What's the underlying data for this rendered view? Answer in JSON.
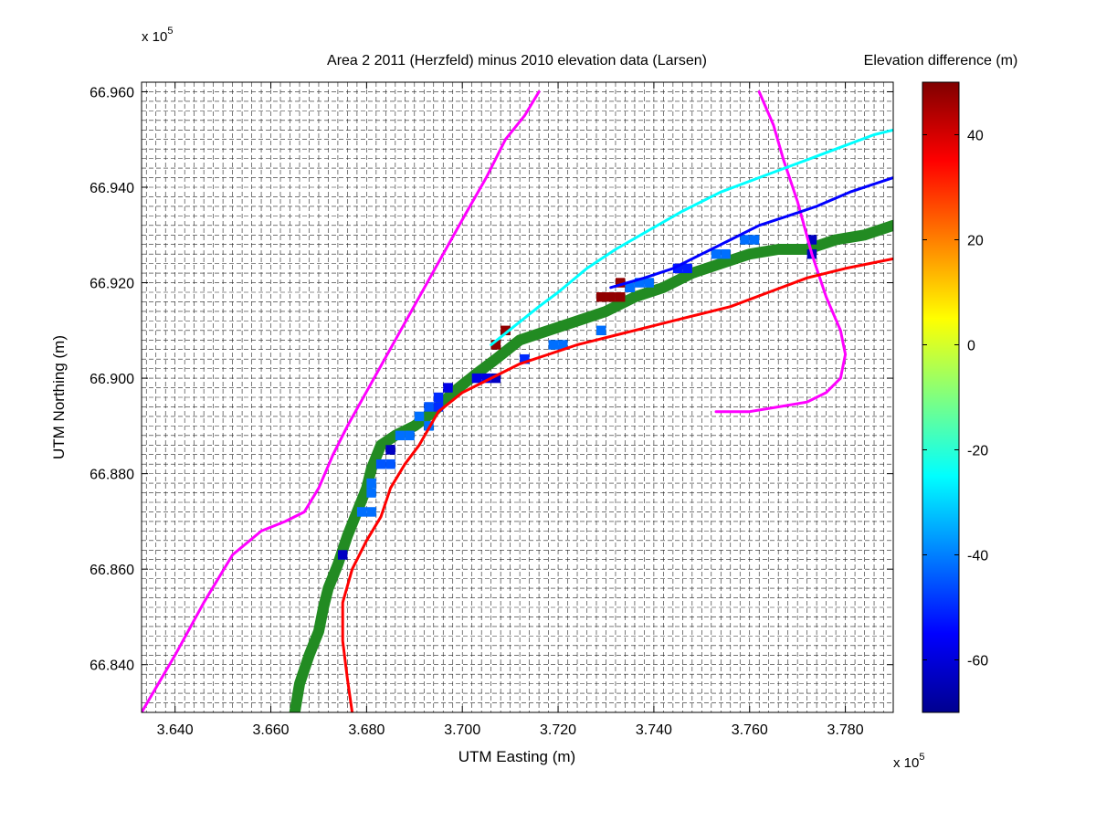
{
  "chart_data": {
    "type": "heatmap",
    "title": "Area 2 2011 (Herzfeld) minus 2010 elevation data (Larsen)",
    "xlabel": "UTM Easting (m)",
    "ylabel": "UTM Northing (m)",
    "x_multiplier_label": "x 10",
    "x_multiplier_exp": "5",
    "y_multiplier_label": "x 10",
    "y_multiplier_exp": "5",
    "xlim": [
      3.633,
      3.79
    ],
    "ylim": [
      66.83,
      66.962
    ],
    "xticks": [
      3.64,
      3.66,
      3.68,
      3.7,
      3.72,
      3.74,
      3.76,
      3.78
    ],
    "xtick_labels": [
      "3.640",
      "3.660",
      "3.680",
      "3.700",
      "3.720",
      "3.740",
      "3.760",
      "3.780"
    ],
    "yticks": [
      66.84,
      66.86,
      66.88,
      66.9,
      66.92,
      66.94,
      66.96
    ],
    "ytick_labels": [
      "66.840",
      "66.860",
      "66.880",
      "66.900",
      "66.920",
      "66.940",
      "66.960"
    ],
    "grid": true,
    "grid_cell_size": 0.002,
    "colorbar": {
      "label": "Elevation difference (m)",
      "range": [
        -70,
        50
      ],
      "ticks": [
        -60,
        -40,
        -20,
        0,
        20,
        40
      ],
      "tick_labels": [
        "-60",
        "-40",
        "-20",
        "0",
        "20",
        "40"
      ]
    },
    "cells": [
      {
        "x": 3.675,
        "y": 66.863,
        "value": -62
      },
      {
        "x": 3.679,
        "y": 66.872,
        "value": -42
      },
      {
        "x": 3.681,
        "y": 66.872,
        "value": -42
      },
      {
        "x": 3.681,
        "y": 66.876,
        "value": -42
      },
      {
        "x": 3.681,
        "y": 66.878,
        "value": -42
      },
      {
        "x": 3.683,
        "y": 66.882,
        "value": -45
      },
      {
        "x": 3.685,
        "y": 66.882,
        "value": -45
      },
      {
        "x": 3.685,
        "y": 66.885,
        "value": -62
      },
      {
        "x": 3.687,
        "y": 66.888,
        "value": -42
      },
      {
        "x": 3.689,
        "y": 66.888,
        "value": -42
      },
      {
        "x": 3.691,
        "y": 66.892,
        "value": -42
      },
      {
        "x": 3.693,
        "y": 66.89,
        "value": -42
      },
      {
        "x": 3.693,
        "y": 66.894,
        "value": -45
      },
      {
        "x": 3.695,
        "y": 66.894,
        "value": -50
      },
      {
        "x": 3.695,
        "y": 66.896,
        "value": -50
      },
      {
        "x": 3.697,
        "y": 66.898,
        "value": -58
      },
      {
        "x": 3.703,
        "y": 66.9,
        "value": -58
      },
      {
        "x": 3.705,
        "y": 66.9,
        "value": -58
      },
      {
        "x": 3.707,
        "y": 66.9,
        "value": -62
      },
      {
        "x": 3.707,
        "y": 66.907,
        "value": 48
      },
      {
        "x": 3.709,
        "y": 66.91,
        "value": 48
      },
      {
        "x": 3.713,
        "y": 66.904,
        "value": -50
      },
      {
        "x": 3.719,
        "y": 66.907,
        "value": -42
      },
      {
        "x": 3.721,
        "y": 66.907,
        "value": -42
      },
      {
        "x": 3.729,
        "y": 66.91,
        "value": -42
      },
      {
        "x": 3.729,
        "y": 66.917,
        "value": 48
      },
      {
        "x": 3.731,
        "y": 66.917,
        "value": 48
      },
      {
        "x": 3.733,
        "y": 66.917,
        "value": 48
      },
      {
        "x": 3.733,
        "y": 66.92,
        "value": 48
      },
      {
        "x": 3.735,
        "y": 66.919,
        "value": -42
      },
      {
        "x": 3.737,
        "y": 66.92,
        "value": -42
      },
      {
        "x": 3.739,
        "y": 66.92,
        "value": -42
      },
      {
        "x": 3.745,
        "y": 66.923,
        "value": -52
      },
      {
        "x": 3.747,
        "y": 66.923,
        "value": -52
      },
      {
        "x": 3.753,
        "y": 66.926,
        "value": -42
      },
      {
        "x": 3.755,
        "y": 66.926,
        "value": -42
      },
      {
        "x": 3.759,
        "y": 66.929,
        "value": -42
      },
      {
        "x": 3.761,
        "y": 66.929,
        "value": -42
      },
      {
        "x": 3.773,
        "y": 66.929,
        "value": -62
      },
      {
        "x": 3.773,
        "y": 66.926,
        "value": -62
      }
    ],
    "lines": [
      {
        "color": "#ff00ff",
        "points": [
          [
            3.633,
            66.83
          ],
          [
            3.64,
            66.842
          ],
          [
            3.646,
            66.853
          ],
          [
            3.652,
            66.863
          ],
          [
            3.658,
            66.868
          ],
          [
            3.663,
            66.87
          ],
          [
            3.667,
            66.872
          ],
          [
            3.67,
            66.877
          ],
          [
            3.673,
            66.884
          ],
          [
            3.676,
            66.89
          ],
          [
            3.681,
            66.899
          ],
          [
            3.686,
            66.908
          ],
          [
            3.691,
            66.917
          ],
          [
            3.696,
            66.926
          ],
          [
            3.701,
            66.935
          ],
          [
            3.705,
            66.942
          ],
          [
            3.709,
            66.95
          ],
          [
            3.713,
            66.955
          ],
          [
            3.716,
            66.96
          ]
        ]
      },
      {
        "color": "#ff00ff",
        "points": [
          [
            3.762,
            66.96
          ],
          [
            3.765,
            66.953
          ],
          [
            3.767,
            66.946
          ],
          [
            3.77,
            66.937
          ],
          [
            3.773,
            66.926
          ],
          [
            3.776,
            66.917
          ],
          [
            3.779,
            66.91
          ],
          [
            3.78,
            66.905
          ],
          [
            3.779,
            66.9
          ],
          [
            3.776,
            66.897
          ],
          [
            3.772,
            66.895
          ],
          [
            3.766,
            66.894
          ],
          [
            3.76,
            66.893
          ],
          [
            3.753,
            66.893
          ]
        ]
      },
      {
        "color": "#00ffff",
        "points": [
          [
            3.706,
            66.907
          ],
          [
            3.711,
            66.911
          ],
          [
            3.716,
            66.915
          ],
          [
            3.72,
            66.918
          ],
          [
            3.726,
            66.923
          ],
          [
            3.732,
            66.927
          ],
          [
            3.739,
            66.931
          ],
          [
            3.746,
            66.935
          ],
          [
            3.754,
            66.939
          ],
          [
            3.762,
            66.942
          ],
          [
            3.77,
            66.945
          ],
          [
            3.778,
            66.948
          ],
          [
            3.786,
            66.951
          ],
          [
            3.79,
            66.952
          ]
        ]
      },
      {
        "color": "#0000ff",
        "points": [
          [
            3.731,
            66.919
          ],
          [
            3.738,
            66.921
          ],
          [
            3.744,
            66.923
          ],
          [
            3.75,
            66.926
          ],
          [
            3.756,
            66.929
          ],
          [
            3.762,
            66.932
          ],
          [
            3.768,
            66.934
          ],
          [
            3.774,
            66.936
          ],
          [
            3.781,
            66.939
          ],
          [
            3.79,
            66.942
          ]
        ]
      },
      {
        "color": "#ff0000",
        "points": [
          [
            3.677,
            66.83
          ],
          [
            3.676,
            66.837
          ],
          [
            3.675,
            66.845
          ],
          [
            3.675,
            66.853
          ],
          [
            3.677,
            66.86
          ],
          [
            3.68,
            66.866
          ],
          [
            3.683,
            66.871
          ],
          [
            3.685,
            66.877
          ],
          [
            3.688,
            66.882
          ],
          [
            3.691,
            66.886
          ],
          [
            3.695,
            66.893
          ],
          [
            3.7,
            66.897
          ],
          [
            3.706,
            66.9
          ],
          [
            3.712,
            66.903
          ],
          [
            3.718,
            66.905
          ],
          [
            3.724,
            66.907
          ],
          [
            3.732,
            66.909
          ],
          [
            3.74,
            66.911
          ],
          [
            3.748,
            66.913
          ],
          [
            3.756,
            66.915
          ],
          [
            3.764,
            66.918
          ],
          [
            3.772,
            66.921
          ],
          [
            3.78,
            66.923
          ],
          [
            3.79,
            66.925
          ]
        ]
      },
      {
        "color": "#228b22",
        "width": 12,
        "points": [
          [
            3.665,
            66.83
          ],
          [
            3.666,
            66.836
          ],
          [
            3.668,
            66.842
          ],
          [
            3.67,
            66.847
          ],
          [
            3.671,
            66.852
          ],
          [
            3.672,
            66.856
          ],
          [
            3.674,
            66.861
          ],
          [
            3.676,
            66.867
          ],
          [
            3.678,
            66.872
          ],
          [
            3.68,
            66.877
          ],
          [
            3.681,
            66.881
          ],
          [
            3.683,
            66.886
          ],
          [
            3.686,
            66.888
          ],
          [
            3.69,
            66.89
          ],
          [
            3.694,
            66.893
          ],
          [
            3.698,
            66.897
          ],
          [
            3.703,
            66.901
          ],
          [
            3.707,
            66.904
          ],
          [
            3.712,
            66.908
          ],
          [
            3.718,
            66.91
          ],
          [
            3.724,
            66.912
          ],
          [
            3.73,
            66.914
          ],
          [
            3.736,
            66.917
          ],
          [
            3.742,
            66.919
          ],
          [
            3.748,
            66.922
          ],
          [
            3.754,
            66.924
          ],
          [
            3.76,
            66.926
          ],
          [
            3.766,
            66.927
          ],
          [
            3.772,
            66.927
          ],
          [
            3.778,
            66.929
          ],
          [
            3.784,
            66.93
          ],
          [
            3.79,
            66.932
          ]
        ]
      }
    ]
  }
}
